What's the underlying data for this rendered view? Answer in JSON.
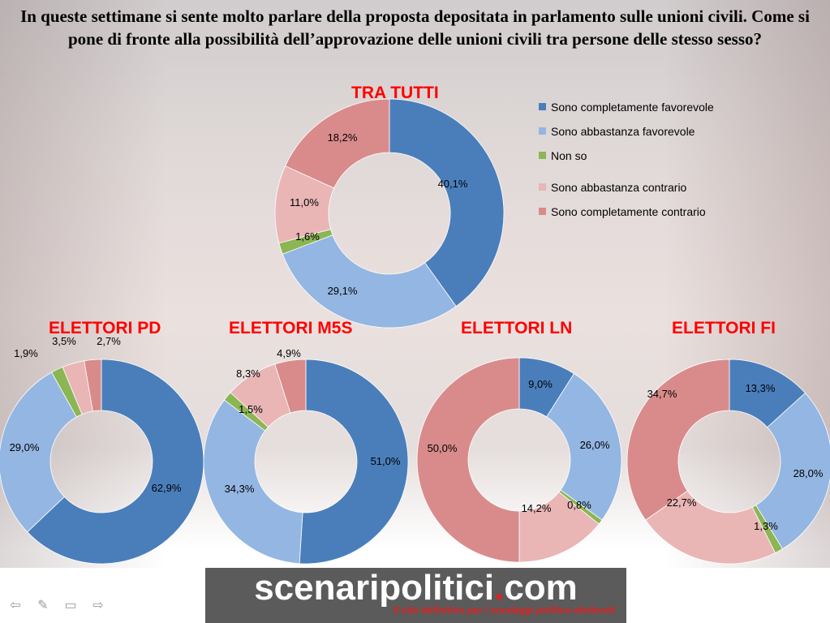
{
  "title": "In queste settimane si sente molto parlare della proposta depositata in parlamento sulle unioni civili.  Come si pone di fronte alla possibilità dell’approvazione delle unioni civili tra persone delle stesso sesso?",
  "colors": {
    "completamente_favorevole": "#4a7ebb",
    "abbastanza_favorevole": "#94b6e2",
    "non_so": "#8cb554",
    "abbastanza_contrario": "#e9b5b5",
    "completamente_contrario": "#d98b8b",
    "subtitle": "#ff0000"
  },
  "legend": [
    {
      "label": "Sono completamente favorevole",
      "color": "#4a7ebb"
    },
    {
      "label": "Sono abbastanza favorevole",
      "color": "#94b6e2"
    },
    {
      "label": "Non so",
      "color": "#8cb554"
    },
    {
      "label": "Sono abbastanza contrario",
      "color": "#e9b5b5"
    },
    {
      "label": "Sono completamente contrario",
      "color": "#d98b8b"
    }
  ],
  "chart_data": [
    {
      "type": "pie",
      "title": "TRA TUTTI",
      "categories": [
        "Sono completamente favorevole",
        "Sono abbastanza favorevole",
        "Non so",
        "Sono abbastanza contrario",
        "Sono completamente contrario"
      ],
      "values": [
        40.1,
        29.1,
        1.6,
        11.0,
        18.2
      ],
      "labels": [
        "40,1%",
        "29,1%",
        "1,6%",
        "11,0%",
        "18,2%"
      ]
    },
    {
      "type": "pie",
      "title": "ELETTORI PD",
      "categories": [
        "Sono completamente favorevole",
        "Sono abbastanza favorevole",
        "Non so",
        "Sono abbastanza contrario",
        "Sono completamente contrario"
      ],
      "values": [
        62.9,
        29.0,
        1.9,
        3.5,
        2.7
      ],
      "labels": [
        "62,9%",
        "29,0%",
        "1,9%",
        "3,5%",
        "2,7%"
      ]
    },
    {
      "type": "pie",
      "title": "ELETTORI M5S",
      "categories": [
        "Sono completamente favorevole",
        "Sono abbastanza favorevole",
        "Non so",
        "Sono abbastanza contrario",
        "Sono completamente contrario"
      ],
      "values": [
        51.0,
        34.3,
        1.5,
        8.3,
        4.9
      ],
      "labels": [
        "51,0%",
        "34,3%",
        "1,5%",
        "8,3%",
        "4,9%"
      ]
    },
    {
      "type": "pie",
      "title": "ELETTORI LN",
      "categories": [
        "Sono completamente favorevole",
        "Sono abbastanza favorevole",
        "Non so",
        "Sono abbastanza contrario",
        "Sono completamente contrario"
      ],
      "values": [
        9.0,
        26.0,
        0.8,
        14.2,
        50.0
      ],
      "labels": [
        "9,0%",
        "26,0%",
        "0,8%",
        "14,2%",
        "50,0%"
      ]
    },
    {
      "type": "pie",
      "title": "ELETTORI FI",
      "categories": [
        "Sono completamente favorevole",
        "Sono abbastanza favorevole",
        "Non so",
        "Sono abbastanza contrario",
        "Sono completamente contrario"
      ],
      "values": [
        13.3,
        28.0,
        1.3,
        22.7,
        34.7
      ],
      "labels": [
        "13,3%",
        "28,0%",
        "1,3%",
        "22,7%",
        "34,7%"
      ]
    }
  ],
  "footer": {
    "brand_main": "scenaripolitici",
    "brand_dot": ".",
    "brand_tld": "com",
    "tagline": "il sito definitivo per i sondaggi politico-elettorali"
  },
  "nav": {
    "prev_icon": "arrow-left-icon",
    "pen_icon": "pen-icon",
    "menu_icon": "slide-menu-icon",
    "next_icon": "arrow-right-icon"
  }
}
